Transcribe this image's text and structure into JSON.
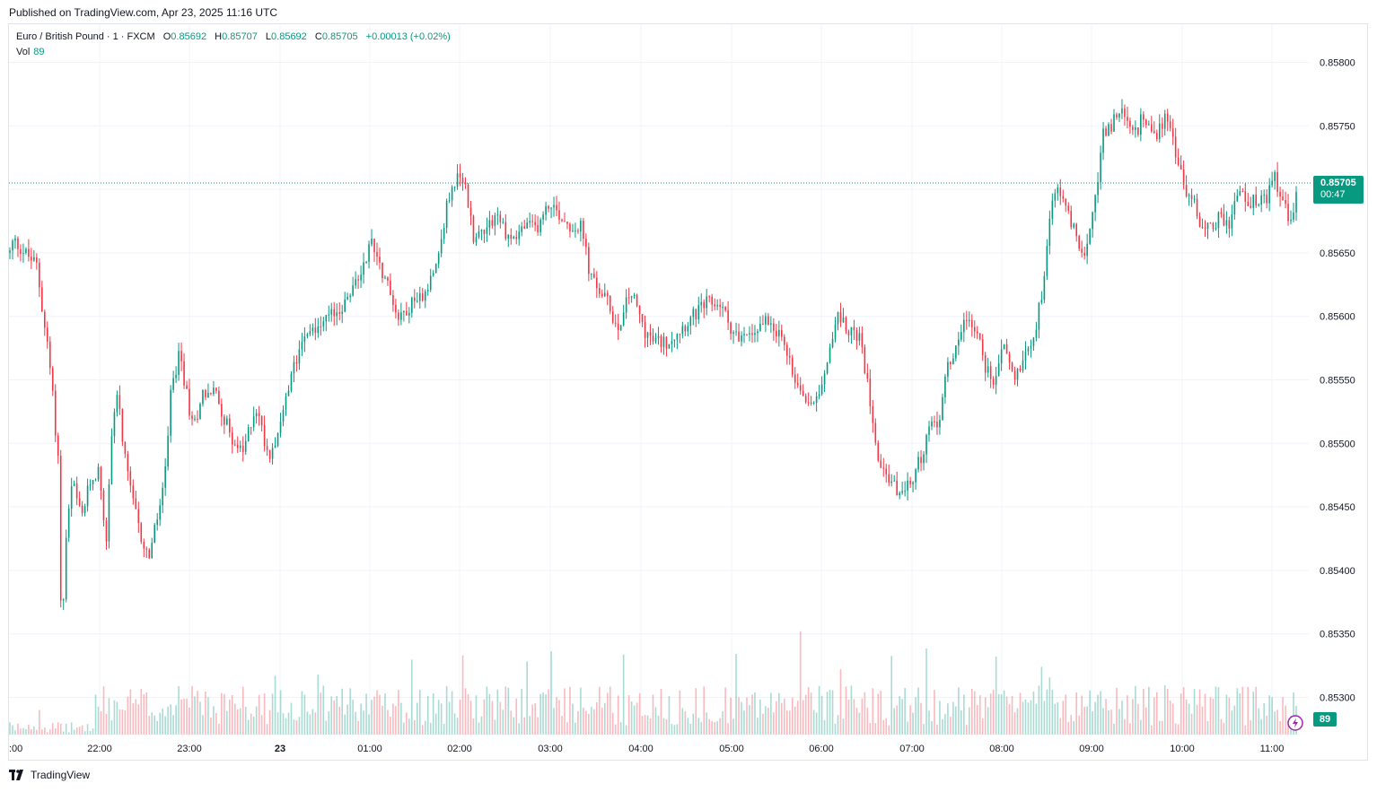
{
  "header": {
    "published": "Published on TradingView.com, Apr 23, 2025 11:16 UTC"
  },
  "legend": {
    "symbol": "Euro / British Pound · 1 · FXCM",
    "o_label": "O",
    "o_value": "0.85692",
    "h_label": "H",
    "h_value": "0.85707",
    "l_label": "L",
    "l_value": "0.85692",
    "c_label": "C",
    "c_value": "0.85705",
    "change": "+0.00013 (+0.02%)",
    "vol_label": "Vol",
    "vol_value": "89"
  },
  "badges": {
    "price": "0.85705",
    "countdown": "00:47",
    "volume": "89"
  },
  "footer": {
    "brand": "TradingView"
  },
  "colors": {
    "up": "#089981",
    "down": "#f23645",
    "grid": "#f0f3fa"
  },
  "chart_data": {
    "type": "candlestick",
    "interval": "1 minute",
    "y_ticks": [
      "0.85800",
      "0.85750",
      "0.85700",
      "0.85650",
      "0.85600",
      "0.85550",
      "0.85500",
      "0.85450",
      "0.85400",
      "0.85350",
      "0.85300"
    ],
    "x_ticks": [
      ":00",
      "22:00",
      "23:00",
      "23",
      "01:00",
      "02:00",
      "03:00",
      "04:00",
      "05:00",
      "06:00",
      "07:00",
      "08:00",
      "09:00",
      "10:00",
      "11:00"
    ],
    "ylim": [
      0.8527,
      0.8583
    ],
    "last_price": 0.85705,
    "price_path": [
      [
        0,
        0.8565
      ],
      [
        4,
        0.8566
      ],
      [
        30,
        0.8564
      ],
      [
        45,
        0.8556
      ],
      [
        55,
        0.8548
      ],
      [
        58,
        0.8533
      ],
      [
        62,
        0.8542
      ],
      [
        70,
        0.8547
      ],
      [
        80,
        0.8544
      ],
      [
        90,
        0.8547
      ],
      [
        100,
        0.8548
      ],
      [
        108,
        0.8542
      ],
      [
        114,
        0.8551
      ],
      [
        120,
        0.8554
      ],
      [
        130,
        0.8548
      ],
      [
        145,
        0.8543
      ],
      [
        155,
        0.8541
      ],
      [
        165,
        0.8544
      ],
      [
        175,
        0.8548
      ],
      [
        180,
        0.8554
      ],
      [
        190,
        0.8557
      ],
      [
        205,
        0.8551
      ],
      [
        215,
        0.8554
      ],
      [
        230,
        0.8554
      ],
      [
        245,
        0.8551
      ],
      [
        260,
        0.8549
      ],
      [
        275,
        0.8553
      ],
      [
        290,
        0.8549
      ],
      [
        305,
        0.8552
      ],
      [
        318,
        0.8556
      ],
      [
        330,
        0.8559
      ],
      [
        345,
        0.8559
      ],
      [
        360,
        0.856
      ],
      [
        375,
        0.8561
      ],
      [
        390,
        0.8563
      ],
      [
        405,
        0.8566
      ],
      [
        420,
        0.8563
      ],
      [
        435,
        0.856
      ],
      [
        450,
        0.8561
      ],
      [
        465,
        0.8562
      ],
      [
        480,
        0.8565
      ],
      [
        490,
        0.8569
      ],
      [
        500,
        0.8571
      ],
      [
        510,
        0.857
      ],
      [
        520,
        0.8566
      ],
      [
        530,
        0.8567
      ],
      [
        545,
        0.8568
      ],
      [
        560,
        0.8566
      ],
      [
        575,
        0.8567
      ],
      [
        590,
        0.8567
      ],
      [
        605,
        0.8569
      ],
      [
        615,
        0.8568
      ],
      [
        630,
        0.8567
      ],
      [
        640,
        0.8567
      ],
      [
        650,
        0.8563
      ],
      [
        660,
        0.8562
      ],
      [
        670,
        0.8561
      ],
      [
        680,
        0.8559
      ],
      [
        695,
        0.8562
      ],
      [
        710,
        0.8559
      ],
      [
        720,
        0.8558
      ],
      [
        735,
        0.8558
      ],
      [
        750,
        0.8559
      ],
      [
        765,
        0.856
      ],
      [
        780,
        0.8561
      ],
      [
        795,
        0.8561
      ],
      [
        808,
        0.8559
      ],
      [
        820,
        0.8558
      ],
      [
        835,
        0.8559
      ],
      [
        850,
        0.856
      ],
      [
        865,
        0.8558
      ],
      [
        880,
        0.8555
      ],
      [
        895,
        0.8553
      ],
      [
        910,
        0.8555
      ],
      [
        925,
        0.856
      ],
      [
        940,
        0.8559
      ],
      [
        952,
        0.8558
      ],
      [
        962,
        0.8554
      ],
      [
        972,
        0.8549
      ],
      [
        985,
        0.8547
      ],
      [
        1000,
        0.8546
      ],
      [
        1010,
        0.8547
      ],
      [
        1020,
        0.8549
      ],
      [
        1030,
        0.8551
      ],
      [
        1040,
        0.8552
      ],
      [
        1050,
        0.8556
      ],
      [
        1060,
        0.8558
      ],
      [
        1070,
        0.856
      ],
      [
        1082,
        0.8559
      ],
      [
        1092,
        0.8556
      ],
      [
        1102,
        0.8555
      ],
      [
        1112,
        0.8558
      ],
      [
        1125,
        0.8555
      ],
      [
        1135,
        0.8557
      ],
      [
        1148,
        0.8559
      ],
      [
        1158,
        0.8563
      ],
      [
        1165,
        0.8569
      ],
      [
        1175,
        0.857
      ],
      [
        1185,
        0.8568
      ],
      [
        1195,
        0.8566
      ],
      [
        1205,
        0.8565
      ],
      [
        1215,
        0.8569
      ],
      [
        1222,
        0.8574
      ],
      [
        1232,
        0.8575
      ],
      [
        1245,
        0.8576
      ],
      [
        1258,
        0.8574
      ],
      [
        1270,
        0.8576
      ],
      [
        1282,
        0.8574
      ],
      [
        1295,
        0.8576
      ],
      [
        1305,
        0.8573
      ],
      [
        1315,
        0.857
      ],
      [
        1325,
        0.8569
      ],
      [
        1335,
        0.8567
      ],
      [
        1345,
        0.8567
      ],
      [
        1355,
        0.8568
      ],
      [
        1365,
        0.8567
      ],
      [
        1375,
        0.857
      ],
      [
        1385,
        0.8569
      ],
      [
        1395,
        0.8569
      ],
      [
        1405,
        0.8569
      ],
      [
        1415,
        0.8571
      ],
      [
        1425,
        0.8569
      ],
      [
        1435,
        0.8567
      ],
      [
        1441,
        0.85705
      ]
    ]
  }
}
